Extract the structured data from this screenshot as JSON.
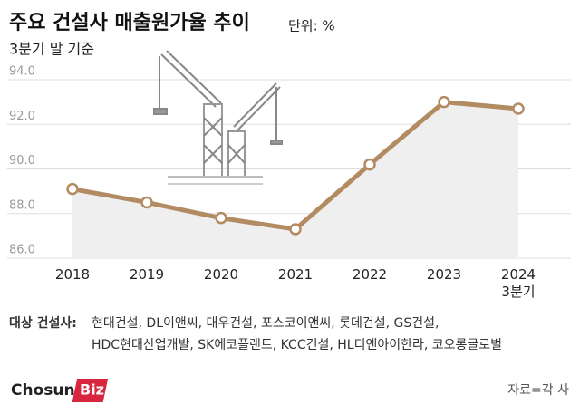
{
  "chart_data": {
    "type": "line",
    "title": "주요 건설사 매출원가율 추이",
    "unit_label": "단위: %",
    "subtitle": "3분기 말 기준",
    "categories": [
      "2018",
      "2019",
      "2020",
      "2021",
      "2022",
      "2023",
      "2024\n3분기"
    ],
    "values": [
      89.1,
      88.5,
      87.8,
      87.3,
      90.2,
      93.0,
      92.7
    ],
    "color": "#b38b62",
    "area_color": "#efefef",
    "ylim": [
      86,
      94
    ],
    "yticks": [
      {
        "value": 86,
        "label": "86.0"
      },
      {
        "value": 88,
        "label": "88.0"
      },
      {
        "value": 90,
        "label": "90.0"
      },
      {
        "value": 92,
        "label": "92.0"
      },
      {
        "value": 94,
        "label": "94.0"
      }
    ],
    "grid": true
  },
  "notes": {
    "label": "대상 건설사:",
    "lines": [
      "현대건설, DL이앤씨, 대우건설, 포스코이앤씨, 롯데건설, GS건설,",
      "HDC현대산업개발, SK에코플랜트, KCC건설, HL디앤아이한라, 코오롱글로벌"
    ]
  },
  "logo": {
    "text": "Chosun",
    "badge": "Biz"
  },
  "source": "자료=각 사"
}
